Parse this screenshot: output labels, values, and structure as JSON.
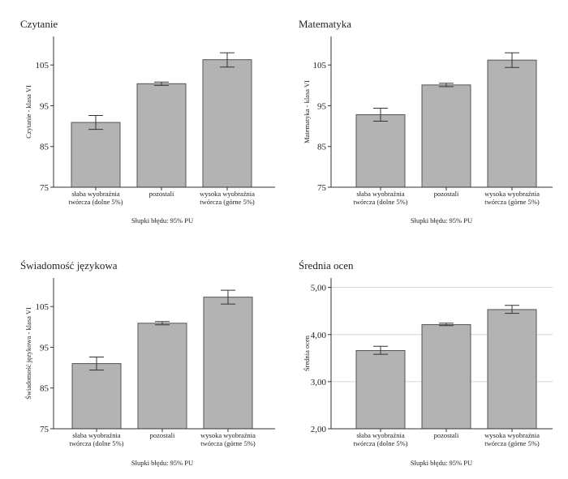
{
  "colors": {
    "bar_fill": "#b3b3b3",
    "bar_stroke": "#555555",
    "axis": "#333333",
    "error_bar": "#333333"
  },
  "chart_data": [
    {
      "type": "bar",
      "title": "Czytanie",
      "ylabel": "Czytanie - klasa VI",
      "xlabel": "",
      "note": "Słupki błędu: 95% PU",
      "categories": [
        [
          "słaba wyobraźnia",
          "twórcza (dolne 5%)"
        ],
        [
          "pozostali"
        ],
        [
          "wysoka wyobraźnia",
          "twórcza (górne 5%)"
        ]
      ],
      "values": [
        90.9,
        100.4,
        106.3
      ],
      "error_low": [
        89.2,
        100.0,
        104.5
      ],
      "error_high": [
        92.6,
        100.8,
        108.0
      ],
      "ylim": [
        75,
        112
      ],
      "yticks": [
        75,
        85,
        95,
        105
      ],
      "ytick_labels": [
        "75",
        "85",
        "95",
        "105"
      ],
      "grid": false
    },
    {
      "type": "bar",
      "title": "Matematyka",
      "ylabel": "Matematyka - klasa VI",
      "xlabel": "",
      "note": "Słupki błędu: 95% PU",
      "categories": [
        [
          "słaba wyobraźnia",
          "twórcza (dolne 5%)"
        ],
        [
          "pozostali"
        ],
        [
          "wysoka wyobraźnia",
          "twórcza (górne 5%)"
        ]
      ],
      "values": [
        92.8,
        100.1,
        106.2
      ],
      "error_low": [
        91.2,
        99.7,
        104.4
      ],
      "error_high": [
        94.4,
        100.5,
        108.0
      ],
      "ylim": [
        75,
        112
      ],
      "yticks": [
        75,
        85,
        95,
        105
      ],
      "ytick_labels": [
        "75",
        "85",
        "95",
        "105"
      ],
      "grid": false
    },
    {
      "type": "bar",
      "title": "Świadomość językowa",
      "ylabel": "Świadomość językowa - klasa VI",
      "xlabel": "",
      "note": "Słupki błędu: 95% PU",
      "categories": [
        [
          "słaba wyobraźnia",
          "twórcza (dolne 5%)"
        ],
        [
          "pozostali"
        ],
        [
          "wysoka wyobraźnia",
          "twórcza (górne 5%)"
        ]
      ],
      "values": [
        91.0,
        100.9,
        107.3
      ],
      "error_low": [
        89.4,
        100.5,
        105.6
      ],
      "error_high": [
        92.6,
        101.3,
        109.0
      ],
      "ylim": [
        75,
        112
      ],
      "yticks": [
        75,
        85,
        95,
        105
      ],
      "ytick_labels": [
        "75",
        "85",
        "95",
        "105"
      ],
      "grid": false
    },
    {
      "type": "bar",
      "title": "Średnia ocen",
      "ylabel": "Średnia ocen",
      "xlabel": "",
      "note": "Słupki błędu: 95% PU",
      "categories": [
        [
          "słaba wyobraźnia",
          "twórcza (dolne 5%)"
        ],
        [
          "pozostali"
        ],
        [
          "wysoka wyobraźnia",
          "twórcza (górne 5%)"
        ]
      ],
      "values": [
        3.66,
        4.21,
        4.53
      ],
      "error_low": [
        3.58,
        4.19,
        4.45
      ],
      "error_high": [
        3.75,
        4.24,
        4.62
      ],
      "ylim": [
        2.0,
        5.2
      ],
      "yticks": [
        2.0,
        3.0,
        4.0,
        5.0
      ],
      "ytick_labels": [
        "2,00",
        "3,00",
        "4,00",
        "5,00"
      ],
      "grid": true
    }
  ]
}
